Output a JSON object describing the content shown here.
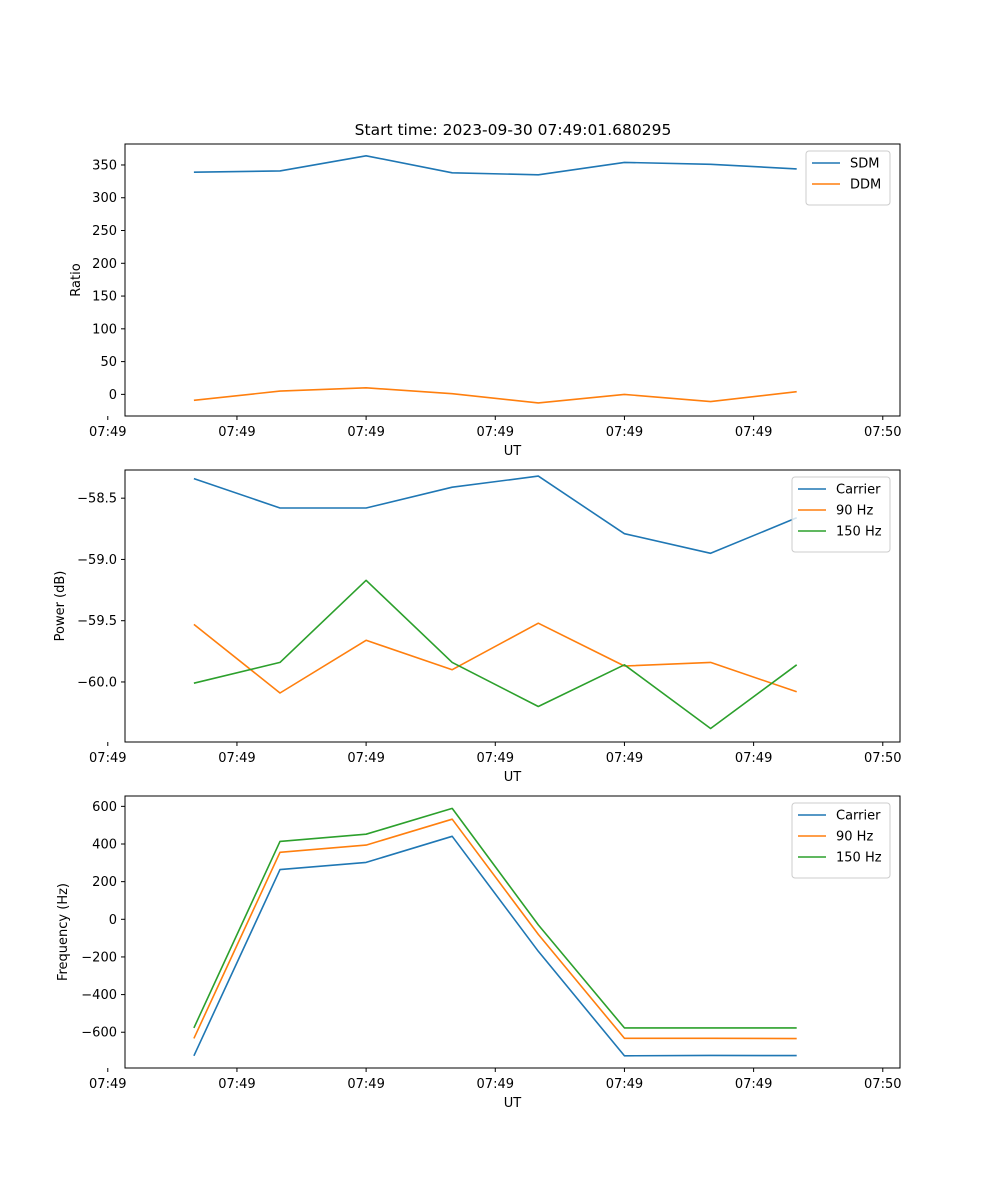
{
  "figure_title": "Start time: 2023-09-30 07:49:01.680295",
  "colors": {
    "c0": "#1f77b4",
    "c1": "#ff7f0e",
    "c2": "#2ca02c"
  },
  "chart_data": [
    {
      "type": "line",
      "title": "Start time: 2023-09-30 07:49:01.680295",
      "xlabel": "UT",
      "ylabel": "Ratio",
      "x": [
        1,
        2,
        3,
        4,
        5,
        6,
        7,
        8
      ],
      "xlim": [
        0.2,
        9.2
      ],
      "x_ticks": [
        0,
        1.5,
        3,
        4.5,
        6,
        7.5,
        9
      ],
      "x_tick_labels": [
        "07:49",
        "07:49",
        "07:49",
        "07:49",
        "07:49",
        "07:49",
        "07:50"
      ],
      "ylim": [
        -33,
        382
      ],
      "y_ticks": [
        0,
        50,
        100,
        150,
        200,
        250,
        300,
        350
      ],
      "legend_position": "top-right",
      "series": [
        {
          "name": "SDM",
          "color": "#1f77b4",
          "values": [
            339,
            341,
            364,
            338,
            335,
            354,
            351,
            344
          ]
        },
        {
          "name": "DDM",
          "color": "#ff7f0e",
          "values": [
            -9,
            5,
            10,
            1,
            -13,
            0,
            -11,
            4
          ]
        }
      ]
    },
    {
      "type": "line",
      "title": "",
      "xlabel": "UT",
      "ylabel": "Power (dB)",
      "x": [
        1,
        2,
        3,
        4,
        5,
        6,
        7,
        8
      ],
      "xlim": [
        0.2,
        9.2
      ],
      "x_ticks": [
        0,
        1.5,
        3,
        4.5,
        6,
        7.5,
        9
      ],
      "x_tick_labels": [
        "07:49",
        "07:49",
        "07:49",
        "07:49",
        "07:49",
        "07:49",
        "07:50"
      ],
      "ylim": [
        -60.49,
        -58.27
      ],
      "y_ticks": [
        -60.0,
        -59.5,
        -59.0,
        -58.5
      ],
      "y_tick_labels": [
        "−60.0",
        "−59.5",
        "−59.0",
        "−58.5"
      ],
      "legend_position": "top-right",
      "series": [
        {
          "name": "Carrier",
          "color": "#1f77b4",
          "values": [
            -58.34,
            -58.58,
            -58.58,
            -58.41,
            -58.32,
            -58.79,
            -58.95,
            -58.66
          ]
        },
        {
          "name": "90 Hz",
          "color": "#ff7f0e",
          "values": [
            -59.53,
            -60.09,
            -59.66,
            -59.9,
            -59.52,
            -59.87,
            -59.84,
            -60.08
          ]
        },
        {
          "name": "150 Hz",
          "color": "#2ca02c",
          "values": [
            -60.01,
            -59.84,
            -59.17,
            -59.84,
            -60.2,
            -59.86,
            -60.38,
            -59.86
          ]
        }
      ]
    },
    {
      "type": "line",
      "title": "",
      "xlabel": "UT",
      "ylabel": "Frequency (Hz)",
      "x": [
        1,
        2,
        3,
        4,
        5,
        6,
        7,
        8
      ],
      "xlim": [
        0.2,
        9.2
      ],
      "x_ticks": [
        0,
        1.5,
        3,
        4.5,
        6,
        7.5,
        9
      ],
      "x_tick_labels": [
        "07:49",
        "07:49",
        "07:49",
        "07:49",
        "07:49",
        "07:49",
        "07:50"
      ],
      "ylim": [
        -790,
        655
      ],
      "y_ticks": [
        -600,
        -400,
        -200,
        0,
        200,
        400,
        600
      ],
      "y_tick_labels": [
        "−600",
        "−400",
        "−200",
        "0",
        "200",
        "400",
        "600"
      ],
      "legend_position": "top-right",
      "series": [
        {
          "name": "Carrier",
          "color": "#1f77b4",
          "values": [
            -725,
            264,
            302,
            441,
            -170,
            -725,
            -723,
            -724
          ]
        },
        {
          "name": "90 Hz",
          "color": "#ff7f0e",
          "values": [
            -633,
            356,
            394,
            532,
            -80,
            -632,
            -632,
            -634
          ]
        },
        {
          "name": "150 Hz",
          "color": "#2ca02c",
          "values": [
            -577,
            414,
            452,
            589,
            -30,
            -577,
            -577,
            -577
          ]
        }
      ]
    }
  ]
}
